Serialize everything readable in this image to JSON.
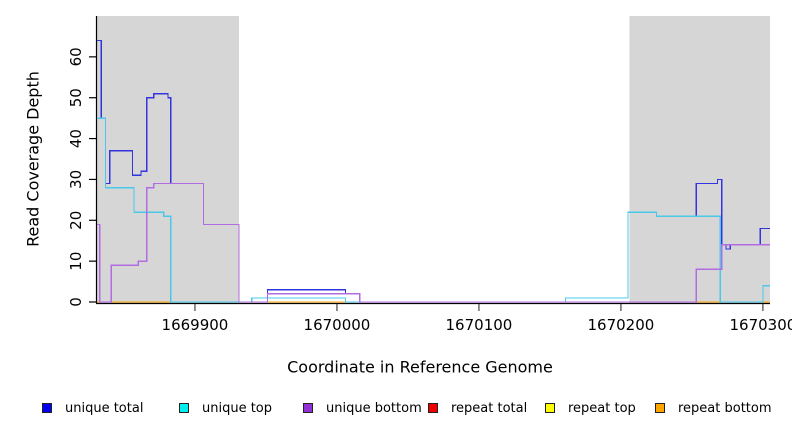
{
  "chart_data": {
    "type": "line",
    "subtype": "step-coverage",
    "title": "",
    "xlabel": "Coordinate in Reference Genome",
    "ylabel": "Read Coverage Depth",
    "x_range": [
      1669831,
      1670305
    ],
    "y_range": [
      0,
      70
    ],
    "x_ticks": [
      1669900,
      1670000,
      1670100,
      1670200,
      1670300
    ],
    "y_ticks": [
      0,
      10,
      20,
      30,
      40,
      50,
      60
    ],
    "grid": false,
    "legend_position": "bottom-horizontal",
    "shade_color": "#d6d6d6",
    "shaded_regions": [
      {
        "name": "left-masked-region",
        "x_start": 1669831,
        "x_end": 1669931
      },
      {
        "name": "right-masked-region",
        "x_start": 1670206,
        "x_end": 1670305
      }
    ],
    "series": [
      {
        "name": "repeat_total",
        "legend_label": "repeat total",
        "color": "#e03040",
        "legend_color": "#ee0000",
        "points": [
          [
            1669831,
            0
          ]
        ]
      },
      {
        "name": "repeat_top",
        "legend_label": "repeat top",
        "color": "#f2f200",
        "legend_color": "#ffff00",
        "points": [
          [
            1669831,
            0
          ]
        ]
      },
      {
        "name": "repeat_bottom",
        "legend_label": "repeat bottom",
        "color": "#ffa500",
        "legend_color": "#ffa500",
        "points": [
          [
            1669831,
            0
          ]
        ]
      },
      {
        "name": "unique_total",
        "legend_label": "unique total",
        "color": "#3333e0",
        "legend_color": "#0000ee",
        "points": [
          [
            1669831,
            64
          ],
          [
            1669834,
            45
          ],
          [
            1669837,
            29
          ],
          [
            1669840,
            37
          ],
          [
            1669856,
            31
          ],
          [
            1669862,
            32
          ],
          [
            1669866,
            50
          ],
          [
            1669871,
            51
          ],
          [
            1669881,
            50
          ],
          [
            1669883,
            29
          ],
          [
            1669906,
            19
          ],
          [
            1669931,
            0
          ],
          [
            1669940,
            1
          ],
          [
            1669951,
            3
          ],
          [
            1670006,
            2
          ],
          [
            1670016,
            0
          ],
          [
            1670161,
            1
          ],
          [
            1670205,
            22
          ],
          [
            1670225,
            21
          ],
          [
            1670253,
            29
          ],
          [
            1670268,
            30
          ],
          [
            1670271,
            14
          ],
          [
            1670274,
            13
          ],
          [
            1670277,
            14
          ],
          [
            1670298,
            18
          ]
        ]
      },
      {
        "name": "unique_top",
        "legend_label": "unique top",
        "color": "#49c8e8",
        "legend_color": "#00eeee",
        "points": [
          [
            1669831,
            45
          ],
          [
            1669837,
            28
          ],
          [
            1669857,
            22
          ],
          [
            1669878,
            21
          ],
          [
            1669883,
            0
          ],
          [
            1669940,
            1
          ],
          [
            1670006,
            0
          ],
          [
            1670161,
            1
          ],
          [
            1670205,
            22
          ],
          [
            1670225,
            21
          ],
          [
            1670270,
            0
          ],
          [
            1670300,
            4
          ]
        ]
      },
      {
        "name": "unique_bottom",
        "legend_label": "unique bottom",
        "color": "#b16ce2",
        "legend_color": "#9130d8",
        "points": [
          [
            1669831,
            19
          ],
          [
            1669833,
            0
          ],
          [
            1669841,
            9
          ],
          [
            1669860,
            10
          ],
          [
            1669866,
            28
          ],
          [
            1669871,
            29
          ],
          [
            1669906,
            19
          ],
          [
            1669931,
            0
          ],
          [
            1669951,
            2
          ],
          [
            1670016,
            0
          ],
          [
            1670253,
            8
          ],
          [
            1670271,
            14
          ]
        ]
      }
    ]
  }
}
